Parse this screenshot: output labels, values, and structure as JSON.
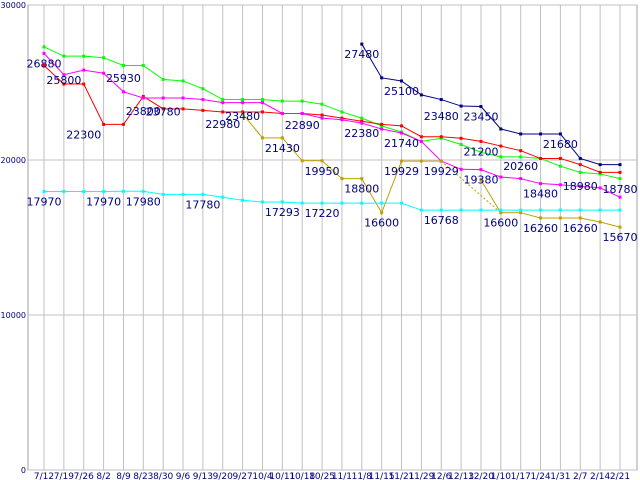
{
  "chart_data": {
    "type": "line",
    "title": "",
    "xlabel": "",
    "ylabel": "",
    "ylim": [
      0,
      30000
    ],
    "y_ticks": [
      "0",
      "10000",
      "20000",
      "30000"
    ],
    "y_tick_values": [
      0,
      10000,
      20000,
      30000
    ],
    "x": [
      "7/12",
      "7/19",
      "7/26",
      "8/2",
      "8/9",
      "8/23",
      "8/30",
      "9/6",
      "9/13",
      "9/20",
      "9/27",
      "10/4",
      "10/11",
      "10/18",
      "10/25",
      "11/1",
      "11/8",
      "11/15",
      "11/21",
      "11/29",
      "12/6",
      "12/13",
      "12/20",
      "1/10",
      "1/17",
      "1/24",
      "1/31",
      "2/7",
      "2/14",
      "2/21"
    ],
    "x_labels": [
      "7/12",
      "7/19",
      "7/26",
      "8/2",
      "8/9",
      "8/23",
      "8/30",
      "9/6",
      "9/13",
      "9/20",
      "9/27",
      "10/4",
      "10/11",
      "10/18",
      "10/25",
      "11/1",
      "11/8",
      "11/15",
      "11/21",
      "11/29",
      "12/6",
      "12/13",
      "12/20",
      "1/10",
      "1/17",
      "1/24",
      "1/31",
      "2/7",
      "2/14",
      "2/21"
    ],
    "grid": true,
    "legend": "none",
    "series": [
      {
        "color": "#00ff00",
        "values": [
          27300,
          26700,
          26700,
          26600,
          26100,
          26100,
          25200,
          25100,
          24600,
          23900,
          23900,
          23900,
          23800,
          23800,
          23600,
          23100,
          22700,
          22200,
          21800,
          21200,
          21400,
          21000,
          20500,
          20200,
          20200,
          20100,
          19600,
          19200,
          19100,
          18800
        ]
      },
      {
        "color": "#ff0000",
        "values": [
          26100,
          24900,
          24900,
          22300,
          22300,
          24100,
          23300,
          23300,
          23200,
          23100,
          23100,
          23100,
          23000,
          23000,
          22900,
          22700,
          22500,
          22300,
          22200,
          21500,
          21500,
          21400,
          21200,
          20900,
          20600,
          20100,
          20100,
          19700,
          19200,
          19200
        ]
      },
      {
        "color": "#ff00ff",
        "values": [
          26880,
          25500,
          25800,
          25600,
          24400,
          24000,
          24000,
          24000,
          23900,
          23700,
          23700,
          23700,
          23000,
          23000,
          22700,
          22600,
          22380,
          22000,
          21740,
          21200,
          19929,
          19400,
          19380,
          18900,
          18800,
          18480,
          18400,
          18300,
          18200,
          17600
        ]
      },
      {
        "color": "#c0a000",
        "values": [
          null,
          null,
          null,
          null,
          null,
          null,
          null,
          null,
          null,
          null,
          22980,
          21430,
          21430,
          19950,
          19950,
          18800,
          18800,
          16600,
          19929,
          19929,
          19929,
          null,
          18700,
          16600,
          16600,
          16260,
          16260,
          16260,
          16000,
          15670
        ],
        "dashed_from": 21,
        "dashed_to": 23
      },
      {
        "color": "#00ffff",
        "values": [
          17970,
          17970,
          17970,
          17970,
          17980,
          17980,
          17780,
          17780,
          17780,
          17600,
          17400,
          17293,
          17293,
          17220,
          17220,
          17220,
          17220,
          17220,
          17220,
          16768,
          16768,
          16768,
          16768,
          16768,
          16768,
          16768,
          16768,
          16768,
          16768,
          16768
        ]
      },
      {
        "color": "#000080",
        "values": [
          null,
          null,
          null,
          null,
          null,
          null,
          null,
          null,
          null,
          null,
          null,
          null,
          null,
          null,
          null,
          null,
          27480,
          25300,
          25100,
          24200,
          23900,
          23480,
          23450,
          22000,
          21680,
          21680,
          21680,
          20100,
          19700,
          19700
        ]
      }
    ],
    "annotations": [
      {
        "text": "26880",
        "x": "7/12",
        "y": 26880
      },
      {
        "text": "25800",
        "x": "7/19",
        "y": 25800
      },
      {
        "text": "25930",
        "x": "8/9",
        "y": 25930
      },
      {
        "text": "22300",
        "x": "7/26",
        "y": 22300
      },
      {
        "text": "23800",
        "x": "8/23",
        "y": 23800
      },
      {
        "text": "23780",
        "x": "8/30",
        "y": 23780
      },
      {
        "text": "22980",
        "x": "9/20",
        "y": 22980
      },
      {
        "text": "23480",
        "x": "9/27",
        "y": 23480
      },
      {
        "text": "21430",
        "x": "10/11",
        "y": 21430
      },
      {
        "text": "22890",
        "x": "10/18",
        "y": 22890
      },
      {
        "text": "19950",
        "x": "10/25",
        "y": 19950
      },
      {
        "text": "22380",
        "x": "11/8",
        "y": 22380
      },
      {
        "text": "18800",
        "x": "11/8",
        "y": 18800
      },
      {
        "text": "27480",
        "x": "11/8",
        "y": 27480
      },
      {
        "text": "25100",
        "x": "11/21",
        "y": 25100
      },
      {
        "text": "21740",
        "x": "11/21",
        "y": 21740
      },
      {
        "text": "19929",
        "x": "11/21",
        "y": 19929
      },
      {
        "text": "16600",
        "x": "11/15",
        "y": 16600
      },
      {
        "text": "23480",
        "x": "12/6",
        "y": 23480
      },
      {
        "text": "19929",
        "x": "12/6",
        "y": 19929
      },
      {
        "text": "16768",
        "x": "12/6",
        "y": 16768
      },
      {
        "text": "23450",
        "x": "12/20",
        "y": 23450
      },
      {
        "text": "21200",
        "x": "12/20",
        "y": 21200
      },
      {
        "text": "19380",
        "x": "12/20",
        "y": 19380
      },
      {
        "text": "16600",
        "x": "1/10",
        "y": 16600
      },
      {
        "text": "20260",
        "x": "1/17",
        "y": 20260
      },
      {
        "text": "21680",
        "x": "1/31",
        "y": 21680
      },
      {
        "text": "18480",
        "x": "1/24",
        "y": 18480
      },
      {
        "text": "16260",
        "x": "1/24",
        "y": 16260
      },
      {
        "text": "18980",
        "x": "2/7",
        "y": 18980
      },
      {
        "text": "16260",
        "x": "2/7",
        "y": 16260
      },
      {
        "text": "18780",
        "x": "2/21",
        "y": 18780
      },
      {
        "text": "17970",
        "x": "7/12",
        "y": 17970
      },
      {
        "text": "17970",
        "x": "8/2",
        "y": 17970
      },
      {
        "text": "17980",
        "x": "8/23",
        "y": 17980
      },
      {
        "text": "17780",
        "x": "9/13",
        "y": 17780
      },
      {
        "text": "17293",
        "x": "10/11",
        "y": 17293
      },
      {
        "text": "17220",
        "x": "10/25",
        "y": 17220
      },
      {
        "text": "15670",
        "x": "2/21",
        "y": 15670
      }
    ]
  }
}
